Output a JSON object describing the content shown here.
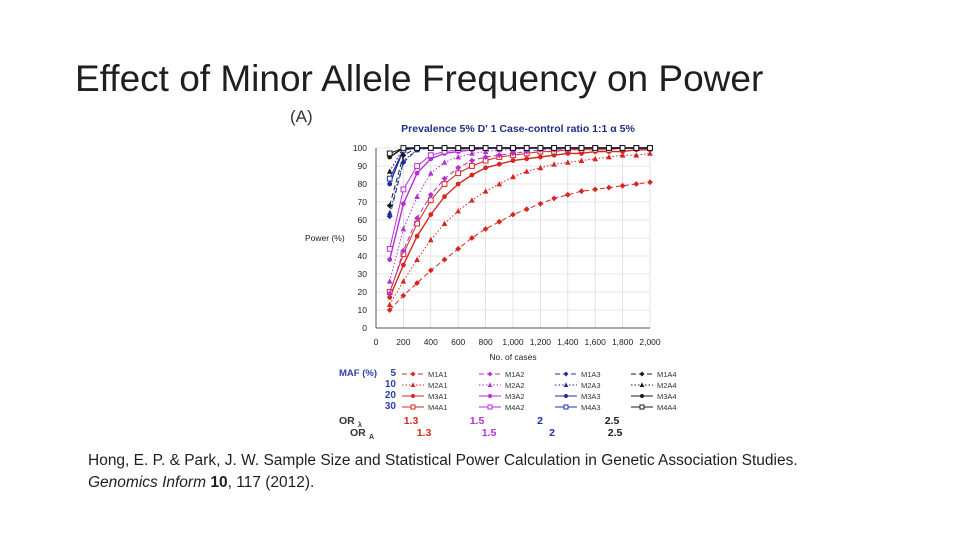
{
  "slide": {
    "title": "Effect of Minor Allele Frequency on Power",
    "panel_label": "(A)",
    "citation": {
      "authors": "Hong, E. P. & Park, J. W.",
      "article": "Sample Size and Statistical Power Calculation in Genetic Association Studies.",
      "journal": "Genomics Inform",
      "volume": "10",
      "pages": ", 117 (2012)."
    }
  },
  "chart_data": {
    "type": "line",
    "title": "Prevalence 5%   D' 1   Case-control ratio 1:1   α 5%",
    "ylabel": "Power (%)",
    "xlabel": "No. of cases",
    "xlim": [
      0,
      2000
    ],
    "ylim": [
      0,
      100
    ],
    "xticks": [
      0,
      200,
      400,
      600,
      800,
      1000,
      1200,
      1400,
      1600,
      1800,
      2000
    ],
    "xtick_labels": [
      "0",
      "200",
      "400",
      "600",
      "800",
      "1,000",
      "1,200",
      "1,400",
      "1,600",
      "1,800",
      "2,000"
    ],
    "yticks": [
      0,
      10,
      20,
      30,
      40,
      50,
      60,
      70,
      80,
      90,
      100
    ],
    "grid": true,
    "x": [
      100,
      200,
      300,
      400,
      500,
      600,
      700,
      800,
      900,
      1000,
      1100,
      1200,
      1300,
      1400,
      1500,
      1600,
      1700,
      1800,
      1900,
      2000
    ],
    "colors": {
      "A1": "#d7261e",
      "A2": "#b62fd6",
      "A3": "#1f2fa3",
      "A4": "#1a1a1a",
      "title": "#1f2f86",
      "legend_header": "#2e3fa8",
      "or_values": "#d7261e"
    },
    "series": [
      {
        "name": "M1A1",
        "group": "A1",
        "style": "dashed",
        "marker": "diamond",
        "values": [
          10,
          18,
          25,
          32,
          38,
          44,
          50,
          55,
          59,
          63,
          66,
          69,
          72,
          74,
          76,
          77,
          78,
          79,
          80,
          81
        ]
      },
      {
        "name": "M2A1",
        "group": "A1",
        "style": "dotted",
        "marker": "triangle",
        "values": [
          13,
          26,
          38,
          49,
          58,
          65,
          71,
          76,
          80,
          84,
          87,
          89,
          91,
          92,
          93,
          94,
          95,
          96,
          96,
          97
        ]
      },
      {
        "name": "M3A1",
        "group": "A1",
        "style": "solid",
        "marker": "circle",
        "values": [
          17,
          35,
          51,
          63,
          73,
          80,
          85,
          89,
          91,
          93,
          94,
          95,
          96,
          97,
          97,
          98,
          98,
          98,
          99,
          99
        ]
      },
      {
        "name": "M4A1",
        "group": "A1",
        "style": "solid-thin",
        "marker": "square",
        "values": [
          20,
          41,
          58,
          71,
          80,
          86,
          90,
          93,
          95,
          96,
          97,
          98,
          98,
          99,
          99,
          99,
          99,
          100,
          100,
          100
        ]
      },
      {
        "name": "M1A2",
        "group": "A2",
        "style": "dashed",
        "marker": "diamond",
        "values": [
          19,
          43,
          61,
          74,
          83,
          89,
          93,
          95,
          96,
          97,
          98,
          99,
          99,
          99,
          100,
          100,
          100,
          100,
          100,
          100
        ]
      },
      {
        "name": "M2A2",
        "group": "A2",
        "style": "dotted",
        "marker": "triangle",
        "values": [
          26,
          55,
          73,
          86,
          92,
          95,
          97,
          98,
          99,
          99,
          100,
          100,
          100,
          100,
          100,
          100,
          100,
          100,
          100,
          100
        ]
      },
      {
        "name": "M3A2",
        "group": "A2",
        "style": "solid",
        "marker": "circle",
        "values": [
          38,
          69,
          86,
          94,
          97,
          98,
          99,
          100,
          100,
          100,
          100,
          100,
          100,
          100,
          100,
          100,
          100,
          100,
          100,
          100
        ]
      },
      {
        "name": "M4A2",
        "group": "A2",
        "style": "solid-thin",
        "marker": "square",
        "values": [
          44,
          77,
          90,
          96,
          98,
          99,
          100,
          100,
          100,
          100,
          100,
          100,
          100,
          100,
          100,
          100,
          100,
          100,
          100,
          100
        ]
      },
      {
        "name": "M1A3",
        "group": "A3",
        "style": "dashed",
        "marker": "diamond",
        "values": [
          62,
          92,
          99,
          100,
          100,
          100,
          100,
          100,
          100,
          100,
          100,
          100,
          100,
          100,
          100,
          100,
          100,
          100,
          100,
          100
        ]
      },
      {
        "name": "M2A3",
        "group": "A3",
        "style": "dotted",
        "marker": "triangle",
        "values": [
          64,
          93,
          99,
          100,
          100,
          100,
          100,
          100,
          100,
          100,
          100,
          100,
          100,
          100,
          100,
          100,
          100,
          100,
          100,
          100
        ]
      },
      {
        "name": "M3A3",
        "group": "A3",
        "style": "solid",
        "marker": "circle",
        "values": [
          80,
          99,
          100,
          100,
          100,
          100,
          100,
          100,
          100,
          100,
          100,
          100,
          100,
          100,
          100,
          100,
          100,
          100,
          100,
          100
        ]
      },
      {
        "name": "M4A3",
        "group": "A3",
        "style": "solid-thin",
        "marker": "square",
        "values": [
          83,
          99,
          100,
          100,
          100,
          100,
          100,
          100,
          100,
          100,
          100,
          100,
          100,
          100,
          100,
          100,
          100,
          100,
          100,
          100
        ]
      },
      {
        "name": "M1A4",
        "group": "A4",
        "style": "dashed",
        "marker": "diamond",
        "values": [
          68,
          96,
          100,
          100,
          100,
          100,
          100,
          100,
          100,
          100,
          100,
          100,
          100,
          100,
          100,
          100,
          100,
          100,
          100,
          100
        ]
      },
      {
        "name": "M2A4",
        "group": "A4",
        "style": "dotted",
        "marker": "triangle",
        "values": [
          87,
          100,
          100,
          100,
          100,
          100,
          100,
          100,
          100,
          100,
          100,
          100,
          100,
          100,
          100,
          100,
          100,
          100,
          100,
          100
        ]
      },
      {
        "name": "M3A4",
        "group": "A4",
        "style": "solid",
        "marker": "circle",
        "values": [
          95,
          100,
          100,
          100,
          100,
          100,
          100,
          100,
          100,
          100,
          100,
          100,
          100,
          100,
          100,
          100,
          100,
          100,
          100,
          100
        ]
      },
      {
        "name": "M4A4",
        "group": "A4",
        "style": "solid-thin",
        "marker": "square",
        "values": [
          97,
          100,
          100,
          100,
          100,
          100,
          100,
          100,
          100,
          100,
          100,
          100,
          100,
          100,
          100,
          100,
          100,
          100,
          100,
          100
        ]
      }
    ],
    "legend": {
      "maf_header": "MAF (%)",
      "maf_values": [
        "5",
        "10",
        "20",
        "30"
      ],
      "columns": [
        [
          "M1A1",
          "M2A1",
          "M3A1",
          "M4A1"
        ],
        [
          "M1A2",
          "M2A2",
          "M3A2",
          "M4A2"
        ],
        [
          "M1A3",
          "M2A3",
          "M3A3",
          "M4A3"
        ],
        [
          "M1A4",
          "M2A4",
          "M3A4",
          "M4A4"
        ]
      ],
      "or_lambda_label": "OR",
      "or_lambda_sub": "λ",
      "or_lambda_values": [
        "1.3",
        "1.5",
        "2",
        "2.5"
      ],
      "or_a_label": "OR",
      "or_a_sub": "A",
      "or_a_values": [
        "1.3",
        "1.5",
        "2",
        "2.5"
      ]
    }
  }
}
